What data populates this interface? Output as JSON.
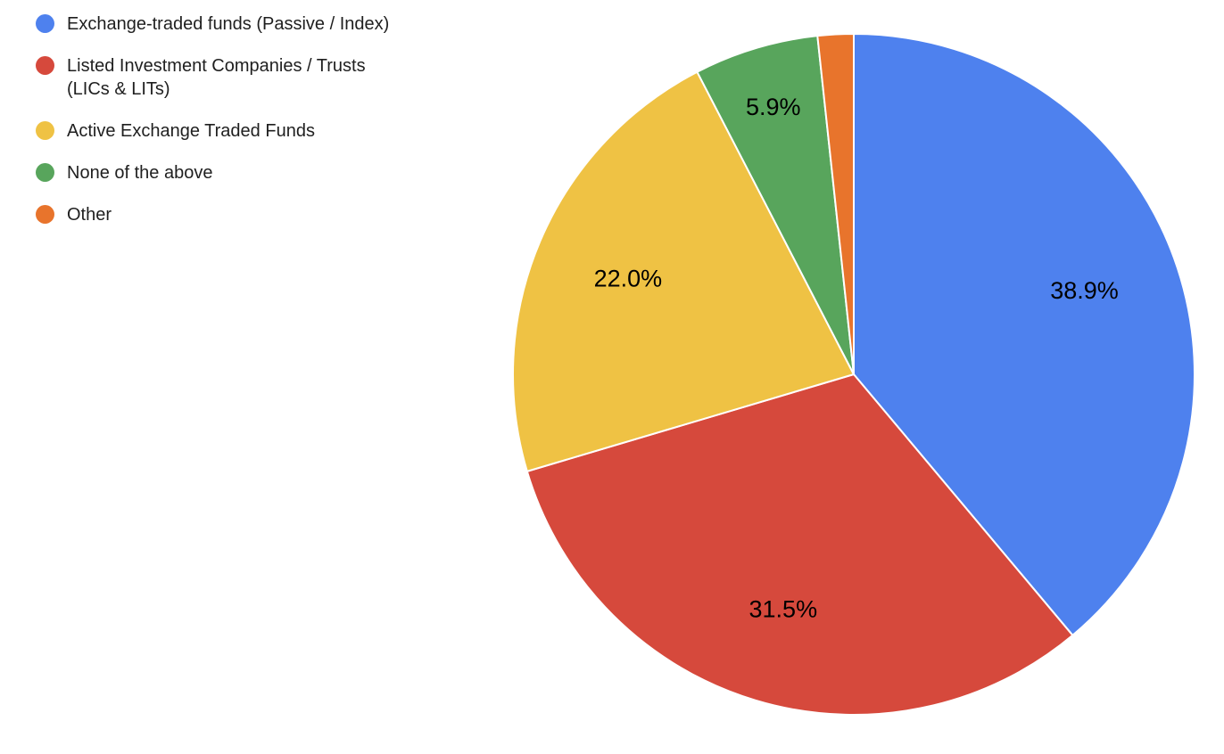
{
  "chart_data": {
    "type": "pie",
    "title": "",
    "unit": "%",
    "legend_position": "top-left",
    "start_angle_deg": 0,
    "direction": "clockwise",
    "background": "#ffffff",
    "slice_border_color": "#ffffff",
    "label_color": "#000000",
    "slices": [
      {
        "category": "Exchange-traded funds (Passive / Index)",
        "legend_lines": [
          "Exchange-traded funds (Passive / Index)"
        ],
        "value": 38.9,
        "label": "38.9%",
        "color": "#4E81EE"
      },
      {
        "category": "Listed Investment Companies / Trusts (LICs & LITs)",
        "legend_lines": [
          "Listed Investment Companies / Trusts",
          "(LICs & LITs)"
        ],
        "value": 31.5,
        "label": "31.5%",
        "color": "#D6493C"
      },
      {
        "category": "Active Exchange Traded Funds",
        "legend_lines": [
          "Active Exchange Traded Funds"
        ],
        "value": 22.0,
        "label": "22.0%",
        "color": "#EFC244"
      },
      {
        "category": "None of the above",
        "legend_lines": [
          "None of the above"
        ],
        "value": 5.9,
        "label": "5.9%",
        "color": "#58A55C"
      },
      {
        "category": "Other",
        "legend_lines": [
          "Other"
        ],
        "value": 1.7,
        "label": "",
        "color": "#E8742C",
        "value_estimated": true
      }
    ]
  }
}
